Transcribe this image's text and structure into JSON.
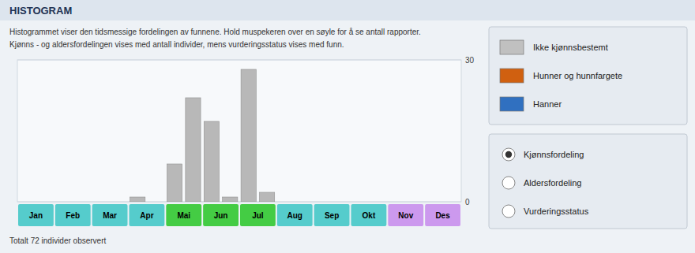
{
  "chart_data": {
    "type": "bar",
    "title": "HISTOGRAM",
    "annotations": [
      "Histogrammet viser den tidsmessige fordelingen av funnene. Hold muspekeren over en søyle for å se antall rapporter.",
      "Kjønns - og aldersfordelingen vises med antall individer, mens vurderingsstatus vises med funn.",
      "Totalt 72 individer observert"
    ],
    "categories": [
      null,
      null,
      null,
      null,
      null,
      null,
      null,
      null,
      null,
      null,
      null,
      null,
      null,
      null,
      null,
      null,
      null,
      null,
      null,
      null,
      null,
      null,
      null,
      null
    ],
    "values": [
      0,
      0,
      0,
      0,
      0,
      0,
      1,
      0,
      8,
      22,
      17,
      1,
      28,
      2,
      0,
      0,
      0,
      0,
      0,
      0,
      0,
      0,
      0,
      0
    ],
    "color": "#b8b8b8",
    "ylim": [
      0,
      30
    ],
    "yticks": [
      0,
      30
    ],
    "grid": true,
    "tick_labels": "y",
    "x_bands": [
      {
        "label": "Jan",
        "color": "#55cccc"
      },
      {
        "label": "Feb",
        "color": "#55cccc"
      },
      {
        "label": "Mar",
        "color": "#55cccc"
      },
      {
        "label": "Apr",
        "color": "#55cccc"
      },
      {
        "label": "Mai",
        "color": "#44cc44"
      },
      {
        "label": "Jun",
        "color": "#44cc44"
      },
      {
        "label": "Jul",
        "color": "#44cc44"
      },
      {
        "label": "Aug",
        "color": "#55cccc"
      },
      {
        "label": "Sep",
        "color": "#55cccc"
      },
      {
        "label": "Okt",
        "color": "#55cccc"
      },
      {
        "label": "Nov",
        "color": "#cc99ee"
      },
      {
        "label": "Des",
        "color": "#cc99ee"
      }
    ],
    "legend_items": [
      {
        "label": "Ikke kjønnsbestemt",
        "color": "#c0c0c0"
      },
      {
        "label": "Hunner og hunnfargete",
        "color": "#d06010"
      },
      {
        "label": "Hanner",
        "color": "#3070c0"
      }
    ],
    "radio_items": [
      "Kjønnsfordeling",
      "Aldersfordeling",
      "Vurderingsstatus"
    ],
    "radio_selected": 0
  }
}
